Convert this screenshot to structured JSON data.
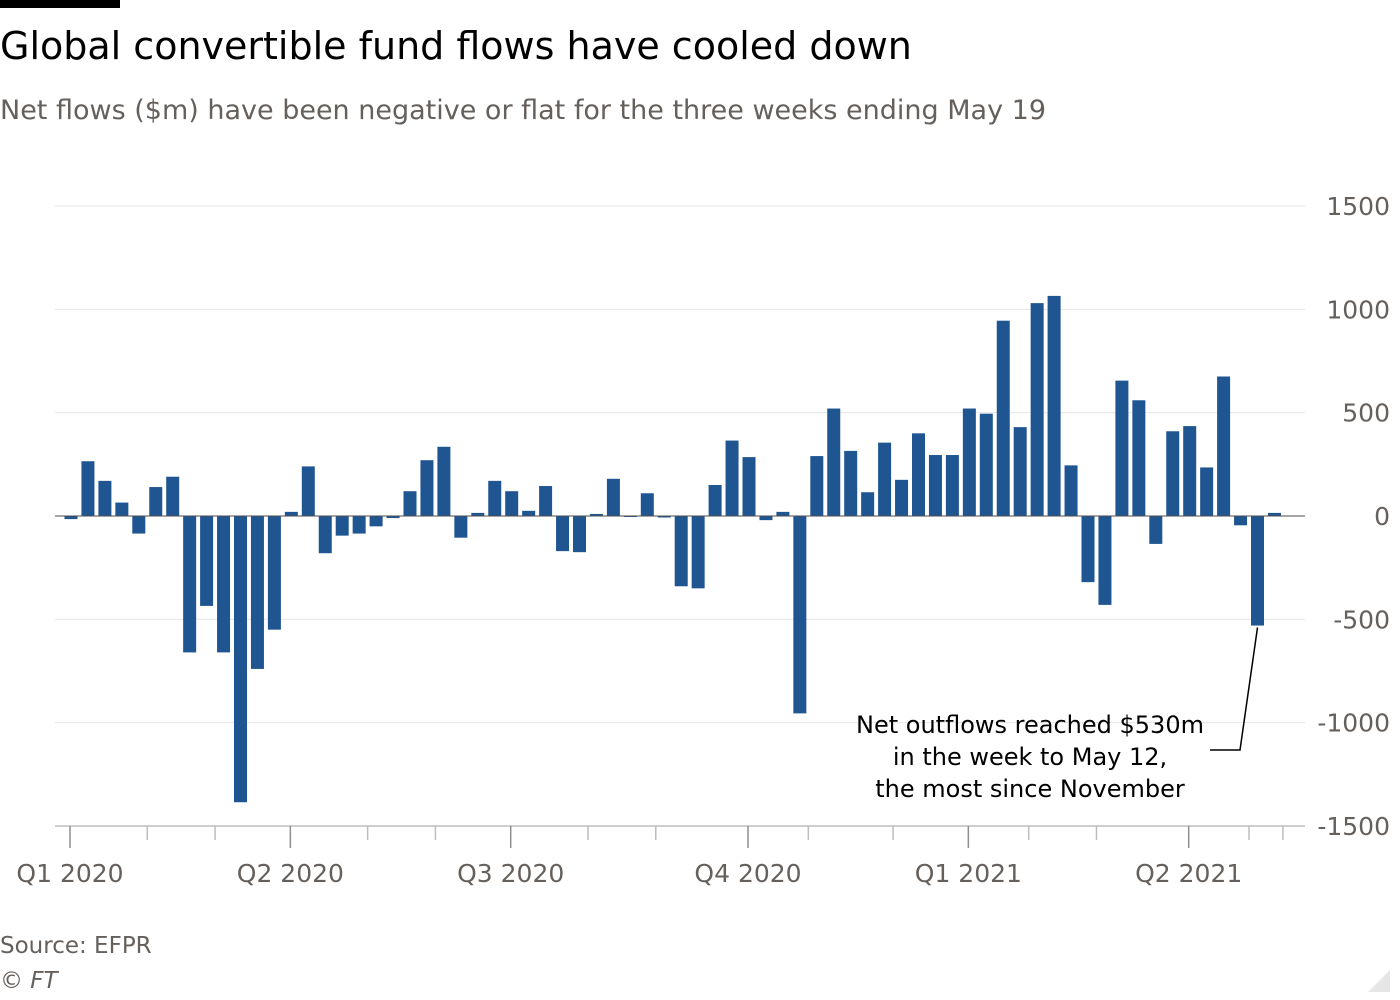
{
  "title": "Global convertible fund flows have cooled down",
  "subtitle": "Net flows ($m) have been negative or flat for the three weeks ending May 19",
  "source": "Source: EFPR",
  "credit": "© FT",
  "colors": {
    "bar": "#1f5591",
    "grid": "#e6e6e6",
    "axis": "#bdbdbd",
    "text": "#66605c"
  },
  "chart_data": {
    "type": "bar",
    "xlabel": "",
    "ylabel": "",
    "ylim": [
      -1500,
      1500
    ],
    "y_ticks": [
      1500,
      1000,
      500,
      0,
      -500,
      -1000,
      -1500
    ],
    "y_tick_labels": [
      "1500",
      "1000",
      "500",
      "0",
      "-500",
      "-1000",
      "-1500"
    ],
    "y_axis_position": "right",
    "grid": true,
    "x_tick_labels": [
      {
        "label": "Q1 2020",
        "week_index": 0
      },
      {
        "label": "Q2 2020",
        "week_index": 13
      },
      {
        "label": "Q3 2020",
        "week_index": 26
      },
      {
        "label": "Q4 2020",
        "week_index": 40
      },
      {
        "label": "Q1 2021",
        "week_index": 53
      },
      {
        "label": "Q2 2021",
        "week_index": 66
      }
    ],
    "series": [
      {
        "values": [
          -15,
          265,
          170,
          65,
          -85,
          140,
          190,
          -660,
          -435,
          -660,
          -1385,
          -740,
          -550,
          20,
          240,
          -180,
          -95,
          -85,
          -50,
          -10,
          120,
          270,
          335,
          -105,
          15,
          170,
          120,
          25,
          145,
          -170,
          -175,
          10,
          180,
          0,
          110,
          -5,
          -340,
          -350,
          150,
          365,
          285,
          -20,
          20,
          -955,
          290,
          520,
          315,
          115,
          355,
          175,
          400,
          295,
          295,
          520,
          495,
          945,
          430,
          1030,
          1065,
          245,
          -320,
          -430,
          655,
          560,
          -135,
          410,
          435,
          235,
          675,
          -45,
          -530,
          15
        ]
      }
    ],
    "annotations": [
      {
        "lines": [
          "Net outflows reached $530m",
          "in the week to May 12,",
          "the most since November"
        ],
        "week_index": 70
      }
    ]
  }
}
